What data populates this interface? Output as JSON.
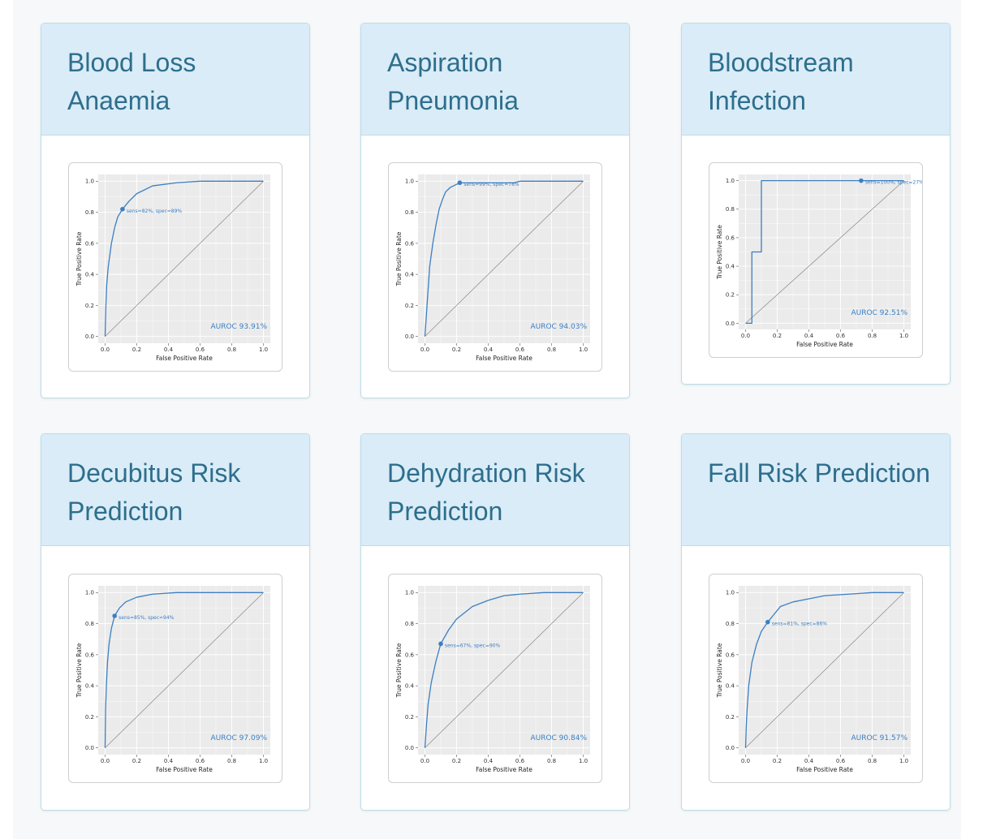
{
  "colors": {
    "header_bg": "#d9ecf7",
    "title": "#2e6e8c",
    "roc_line": "#3b7fc4",
    "plot_bg": "#ebebeb"
  },
  "chart_data": [
    {
      "type": "line",
      "title": "Blood Loss Anaemia",
      "xlabel": "False Positive Rate",
      "ylabel": "True Positive Rate",
      "xlim": [
        0,
        1
      ],
      "ylim": [
        0,
        1
      ],
      "ticks": [
        "0.0",
        "0.2",
        "0.4",
        "0.6",
        "0.8",
        "1.0"
      ],
      "grid": true,
      "annotation": "AUROC 93.91%",
      "operating_point": {
        "x": 0.11,
        "y": 0.82,
        "label": "sens=82%, spec=89%"
      },
      "series": [
        {
          "x": [
            0,
            0.005,
            0.01,
            0.02,
            0.04,
            0.06,
            0.08,
            0.11,
            0.15,
            0.2,
            0.3,
            0.45,
            0.6,
            1.0
          ],
          "y": [
            0,
            0.2,
            0.33,
            0.45,
            0.6,
            0.7,
            0.77,
            0.82,
            0.87,
            0.92,
            0.97,
            0.99,
            1.0,
            1.0
          ]
        },
        {
          "x": [
            0,
            1
          ],
          "y": [
            0,
            1
          ]
        }
      ]
    },
    {
      "type": "line",
      "title": "Aspiration Pneumonia",
      "xlabel": "False Positive Rate",
      "ylabel": "True Positive Rate",
      "xlim": [
        0,
        1
      ],
      "ylim": [
        0,
        1
      ],
      "ticks": [
        "0.0",
        "0.2",
        "0.4",
        "0.6",
        "0.8",
        "1.0"
      ],
      "grid": true,
      "annotation": "AUROC 94.03%",
      "operating_point": {
        "x": 0.22,
        "y": 0.99,
        "label": "sens=99%, spec=78%"
      },
      "series": [
        {
          "x": [
            0,
            0.01,
            0.02,
            0.03,
            0.05,
            0.07,
            0.09,
            0.11,
            0.13,
            0.16,
            0.2,
            0.22,
            0.4,
            0.56,
            0.6,
            1.0
          ],
          "y": [
            0,
            0.15,
            0.3,
            0.45,
            0.6,
            0.72,
            0.82,
            0.88,
            0.93,
            0.96,
            0.98,
            0.99,
            0.99,
            0.99,
            1.0,
            1.0
          ]
        },
        {
          "x": [
            0,
            1
          ],
          "y": [
            0,
            1
          ]
        }
      ]
    },
    {
      "type": "line",
      "title": "Bloodstream Infection",
      "xlabel": "False Positive Rate",
      "ylabel": "True Positive Rate",
      "xlim": [
        0,
        1
      ],
      "ylim": [
        0,
        1
      ],
      "ticks": [
        "0.0",
        "0.2",
        "0.4",
        "0.6",
        "0.8",
        "1.0"
      ],
      "grid": true,
      "annotation": "AUROC 92.51%",
      "operating_point": {
        "x": 0.73,
        "y": 1.0,
        "label": "sens=100%, spec=27%"
      },
      "series": [
        {
          "x": [
            0,
            0.04,
            0.04,
            0.1,
            0.1,
            1.0
          ],
          "y": [
            0,
            0,
            0.5,
            0.5,
            1.0,
            1.0
          ]
        },
        {
          "x": [
            0,
            1
          ],
          "y": [
            0,
            1
          ]
        }
      ]
    },
    {
      "type": "line",
      "title": "Decubitus Risk Prediction",
      "xlabel": "False Positive Rate",
      "ylabel": "True Positive Rate",
      "xlim": [
        0,
        1
      ],
      "ylim": [
        0,
        1
      ],
      "ticks": [
        "0.0",
        "0.2",
        "0.4",
        "0.6",
        "0.8",
        "1.0"
      ],
      "grid": true,
      "annotation": "AUROC 97.09%",
      "operating_point": {
        "x": 0.06,
        "y": 0.85,
        "label": "sens=85%, spec=94%"
      },
      "series": [
        {
          "x": [
            0,
            0.003,
            0.008,
            0.015,
            0.025,
            0.04,
            0.06,
            0.09,
            0.13,
            0.2,
            0.3,
            0.45,
            1.0
          ],
          "y": [
            0,
            0.25,
            0.4,
            0.55,
            0.67,
            0.77,
            0.85,
            0.9,
            0.94,
            0.97,
            0.99,
            1.0,
            1.0
          ]
        },
        {
          "x": [
            0,
            1
          ],
          "y": [
            0,
            1
          ]
        }
      ]
    },
    {
      "type": "line",
      "title": "Dehydration Risk Prediction",
      "xlabel": "False Positive Rate",
      "ylabel": "True Positive Rate",
      "xlim": [
        0,
        1
      ],
      "ylim": [
        0,
        1
      ],
      "ticks": [
        "0.0",
        "0.2",
        "0.4",
        "0.6",
        "0.8",
        "1.0"
      ],
      "grid": true,
      "annotation": "AUROC 90.84%",
      "operating_point": {
        "x": 0.1,
        "y": 0.67,
        "label": "sens=67%, spec=90%"
      },
      "series": [
        {
          "x": [
            0,
            0.01,
            0.02,
            0.04,
            0.07,
            0.1,
            0.15,
            0.2,
            0.3,
            0.4,
            0.5,
            0.6,
            0.75,
            1.0
          ],
          "y": [
            0,
            0.15,
            0.28,
            0.42,
            0.56,
            0.67,
            0.76,
            0.83,
            0.91,
            0.95,
            0.98,
            0.99,
            1.0,
            1.0
          ]
        },
        {
          "x": [
            0,
            1
          ],
          "y": [
            0,
            1
          ]
        }
      ]
    },
    {
      "type": "line",
      "title": "Fall Risk Prediction",
      "xlabel": "False Positive Rate",
      "ylabel": "True Positive Rate",
      "xlim": [
        0,
        1
      ],
      "ylim": [
        0,
        1
      ],
      "ticks": [
        "0.0",
        "0.2",
        "0.4",
        "0.6",
        "0.8",
        "1.0"
      ],
      "grid": true,
      "annotation": "AUROC 91.57%",
      "operating_point": {
        "x": 0.14,
        "y": 0.81,
        "label": "sens=81%, spec=86%"
      },
      "series": [
        {
          "x": [
            0,
            0.005,
            0.01,
            0.02,
            0.04,
            0.07,
            0.1,
            0.14,
            0.18,
            0.22,
            0.3,
            0.4,
            0.5,
            0.65,
            0.8,
            1.0
          ],
          "y": [
            0,
            0.15,
            0.25,
            0.4,
            0.55,
            0.67,
            0.75,
            0.81,
            0.86,
            0.91,
            0.94,
            0.96,
            0.98,
            0.99,
            1.0,
            1.0
          ]
        },
        {
          "x": [
            0,
            1
          ],
          "y": [
            0,
            1
          ]
        }
      ]
    }
  ]
}
